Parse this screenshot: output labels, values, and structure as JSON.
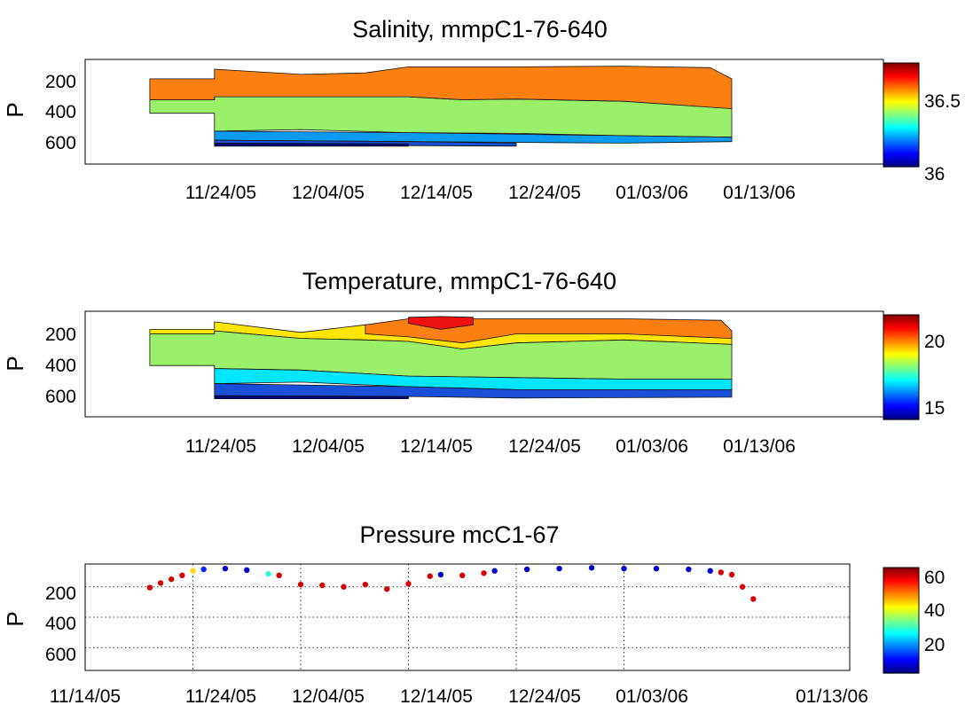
{
  "figure": {
    "panels": [
      {
        "key": "salinity",
        "title": "Salinity, mmpC1-76-640",
        "ylabel": "P",
        "yticks": [
          200,
          400,
          600
        ],
        "xticks": [
          "11/24/05",
          "12/04/05",
          "12/14/05",
          "12/24/05",
          "01/03/06",
          "01/13/06"
        ],
        "colorbar_ticks": [
          "36.5",
          "36"
        ]
      },
      {
        "key": "temperature",
        "title": "Temperature, mmpC1-76-640",
        "ylabel": "P",
        "yticks": [
          200,
          400,
          600
        ],
        "xticks": [
          "11/24/05",
          "12/04/05",
          "12/14/05",
          "12/24/05",
          "01/03/06",
          "01/13/06"
        ],
        "colorbar_ticks": [
          "20",
          "15"
        ]
      },
      {
        "key": "pressure",
        "title": "Pressure mcC1-67",
        "ylabel": "P",
        "yticks": [
          200,
          400,
          600
        ],
        "xticks": [
          "11/14/05",
          "11/24/05",
          "12/04/05",
          "12/14/05",
          "12/24/05",
          "01/03/06",
          "01/13/06"
        ],
        "colorbar_ticks": [
          "60",
          "40",
          "20"
        ]
      }
    ]
  },
  "chart_data": [
    {
      "type": "heatmap",
      "title": "Salinity, mmpC1-76-640",
      "xlabel": "",
      "ylabel": "P",
      "x_range": [
        "11/14/05",
        "01/23/06"
      ],
      "ylim": [
        750,
        50
      ],
      "y_reversed": true,
      "colorbar": {
        "min": 35.95,
        "max": 36.75,
        "ticks": [
          36,
          36.5
        ],
        "colormap": "jet"
      },
      "bands": [
        {
          "range": [
            36.0,
            36.1
          ],
          "color": "#00007f"
        },
        {
          "range": [
            36.1,
            36.2
          ],
          "color": "#1a4fd8"
        },
        {
          "range": [
            36.2,
            36.3
          ],
          "color": "#0a9bf0"
        },
        {
          "range": [
            36.4,
            36.5
          ],
          "color": "#9af06a"
        },
        {
          "range": [
            36.5,
            36.7
          ],
          "color": "#fc7f12"
        }
      ],
      "layers": [
        {
          "band": 3,
          "top": [
            [
              "11/20/05",
              320
            ],
            [
              "11/26/05",
              320
            ],
            [
              "11/26/05",
              300
            ],
            [
              "12/04/05",
              300
            ],
            [
              "12/14/05",
              300
            ],
            [
              "12/19/05",
              320
            ],
            [
              "12/24/05",
              315
            ],
            [
              "01/03/06",
              330
            ],
            [
              "01/08/06",
              340
            ],
            [
              "01/12/06",
              350
            ],
            [
              "01/13/06",
              380
            ]
          ],
          "bottom": [
            [
              "11/20/05",
              410
            ],
            [
              "11/26/05",
              410
            ],
            [
              "11/26/05",
              530
            ],
            [
              "12/04/05",
              520
            ],
            [
              "12/14/05",
              540
            ],
            [
              "12/24/05",
              545
            ],
            [
              "01/03/06",
              560
            ],
            [
              "01/13/06",
              570
            ]
          ]
        },
        {
          "band": 4,
          "top": [
            [
              "11/20/05",
              180
            ],
            [
              "11/26/05",
              180
            ],
            [
              "11/26/05",
              115
            ],
            [
              "12/04/05",
              150
            ],
            [
              "12/10/05",
              140
            ],
            [
              "12/14/05",
              100
            ],
            [
              "12/24/05",
              100
            ],
            [
              "01/03/06",
              95
            ],
            [
              "01/11/06",
              105
            ],
            [
              "01/13/06",
              180
            ]
          ],
          "bottom": [
            [
              "11/20/05",
              320
            ],
            [
              "11/26/05",
              320
            ],
            [
              "11/26/05",
              300
            ],
            [
              "12/04/05",
              300
            ],
            [
              "12/14/05",
              300
            ],
            [
              "12/19/05",
              320
            ],
            [
              "12/24/05",
              315
            ],
            [
              "01/03/06",
              330
            ],
            [
              "01/13/06",
              380
            ]
          ]
        },
        {
          "band": 2,
          "top": [
            [
              "11/26/05",
              530
            ],
            [
              "12/14/05",
              540
            ],
            [
              "01/03/06",
              560
            ],
            [
              "01/13/06",
              570
            ]
          ],
          "bottom": [
            [
              "11/26/05",
              590
            ],
            [
              "12/14/05",
              600
            ],
            [
              "01/03/06",
              610
            ],
            [
              "01/13/06",
              600
            ]
          ]
        },
        {
          "band": 1,
          "top": [
            [
              "11/26/05",
              590
            ],
            [
              "12/14/05",
              600
            ],
            [
              "12/24/05",
              610
            ]
          ],
          "bottom": [
            [
              "11/26/05",
              620
            ],
            [
              "12/24/05",
              630
            ]
          ]
        },
        {
          "band": 0,
          "top": [
            [
              "11/26/05",
              610
            ],
            [
              "12/14/05",
              615
            ]
          ],
          "bottom": [
            [
              "11/26/05",
              630
            ],
            [
              "12/14/05",
              630
            ]
          ]
        }
      ]
    },
    {
      "type": "heatmap",
      "title": "Temperature, mmpC1-76-640",
      "xlabel": "",
      "ylabel": "P",
      "x_range": [
        "11/14/05",
        "01/23/06"
      ],
      "ylim": [
        750,
        50
      ],
      "y_reversed": true,
      "colorbar": {
        "min": 14,
        "max": 22,
        "ticks": [
          15,
          20
        ],
        "colormap": "jet"
      },
      "bands": [
        {
          "range": [
            14,
            15
          ],
          "color": "#00007f"
        },
        {
          "range": [
            15,
            16
          ],
          "color": "#1a4fd8"
        },
        {
          "range": [
            16,
            17
          ],
          "color": "#00e5ff"
        },
        {
          "range": [
            17,
            19
          ],
          "color": "#9af06a"
        },
        {
          "range": [
            19,
            20
          ],
          "color": "#ffe600"
        },
        {
          "range": [
            20,
            21
          ],
          "color": "#fc7f12"
        },
        {
          "range": [
            21,
            22
          ],
          "color": "#ee1111"
        }
      ],
      "layers": [
        {
          "band": 4,
          "top": [
            [
              "11/20/05",
              170
            ],
            [
              "11/26/05",
              170
            ],
            [
              "11/26/05",
              120
            ],
            [
              "12/04/05",
              190
            ],
            [
              "12/10/05",
              140
            ],
            [
              "12/14/05",
              150
            ],
            [
              "12/24/05",
              150
            ],
            [
              "01/03/06",
              130
            ],
            [
              "01/13/06",
              200
            ]
          ],
          "bottom": [
            [
              "11/20/05",
              200
            ],
            [
              "11/26/05",
              200
            ],
            [
              "11/26/05",
              180
            ],
            [
              "12/04/05",
              230
            ],
            [
              "12/10/05",
              240
            ],
            [
              "12/14/05",
              250
            ],
            [
              "12/19/05",
              300
            ],
            [
              "12/24/05",
              260
            ],
            [
              "01/03/06",
              240
            ],
            [
              "01/13/06",
              270
            ]
          ]
        },
        {
          "band": 5,
          "top": [
            [
              "12/10/05",
              140
            ],
            [
              "12/14/05",
              100
            ],
            [
              "12/24/05",
              100
            ],
            [
              "01/03/06",
              100
            ],
            [
              "01/12/06",
              110
            ],
            [
              "01/13/06",
              180
            ]
          ],
          "bottom": [
            [
              "12/10/05",
              200
            ],
            [
              "12/14/05",
              220
            ],
            [
              "12/19/05",
              260
            ],
            [
              "12/24/05",
              200
            ],
            [
              "01/03/06",
              200
            ],
            [
              "01/13/06",
              230
            ]
          ]
        },
        {
          "band": 6,
          "top": [
            [
              "12/14/05",
              90
            ],
            [
              "12/17/05",
              85
            ],
            [
              "12/20/05",
              90
            ]
          ],
          "bottom": [
            [
              "12/14/05",
              130
            ],
            [
              "12/17/05",
              170
            ],
            [
              "12/20/05",
              140
            ]
          ]
        },
        {
          "band": 3,
          "top": [
            [
              "11/20/05",
              200
            ],
            [
              "11/26/05",
              200
            ],
            [
              "11/26/05",
              180
            ],
            [
              "12/04/05",
              230
            ],
            [
              "12/10/05",
              240
            ],
            [
              "12/14/05",
              250
            ],
            [
              "12/19/05",
              300
            ],
            [
              "12/24/05",
              260
            ],
            [
              "01/03/06",
              240
            ],
            [
              "01/13/06",
              270
            ]
          ],
          "bottom": [
            [
              "11/20/05",
              410
            ],
            [
              "11/26/05",
              410
            ],
            [
              "11/26/05",
              430
            ],
            [
              "12/04/05",
              440
            ],
            [
              "12/14/05",
              480
            ],
            [
              "12/24/05",
              490
            ],
            [
              "01/03/06",
              500
            ],
            [
              "01/13/06",
              500
            ]
          ]
        },
        {
          "band": 2,
          "top": [
            [
              "11/26/05",
              430
            ],
            [
              "12/04/05",
              440
            ],
            [
              "12/14/05",
              480
            ],
            [
              "12/24/05",
              490
            ],
            [
              "01/03/06",
              500
            ],
            [
              "01/13/06",
              500
            ]
          ],
          "bottom": [
            [
              "11/26/05",
              530
            ],
            [
              "12/04/05",
              520
            ],
            [
              "12/14/05",
              550
            ],
            [
              "12/24/05",
              570
            ],
            [
              "01/03/06",
              580
            ],
            [
              "01/13/06",
              570
            ]
          ]
        },
        {
          "band": 1,
          "top": [
            [
              "11/26/05",
              530
            ],
            [
              "12/14/05",
              550
            ],
            [
              "12/24/05",
              570
            ],
            [
              "01/13/06",
              570
            ]
          ],
          "bottom": [
            [
              "11/26/05",
              610
            ],
            [
              "12/14/05",
              615
            ],
            [
              "12/24/05",
              625
            ],
            [
              "01/13/06",
              620
            ]
          ]
        },
        {
          "band": 0,
          "top": [
            [
              "11/26/05",
              610
            ],
            [
              "12/14/05",
              615
            ]
          ],
          "bottom": [
            [
              "11/26/05",
              630
            ],
            [
              "12/14/05",
              630
            ]
          ]
        }
      ]
    },
    {
      "type": "scatter",
      "title": "Pressure mcC1-67",
      "xlabel": "",
      "ylabel": "P",
      "x_range": [
        "11/14/05",
        "01/13/06"
      ],
      "ylim": [
        750,
        50
      ],
      "y_reversed": true,
      "grid": true,
      "colorbar": {
        "min": 5,
        "max": 65,
        "ticks": [
          20,
          40,
          60
        ],
        "colormap": "jet"
      },
      "color_by": "value",
      "points": [
        {
          "date": "11/20/05",
          "P": 205,
          "c": 60
        },
        {
          "date": "11/21/05",
          "P": 175,
          "c": 60
        },
        {
          "date": "11/22/05",
          "P": 150,
          "c": 60
        },
        {
          "date": "11/23/05",
          "P": 125,
          "c": 60
        },
        {
          "date": "11/24/05",
          "P": 95,
          "c": 45
        },
        {
          "date": "11/25/05",
          "P": 85,
          "c": 15
        },
        {
          "date": "11/27/05",
          "P": 80,
          "c": 10
        },
        {
          "date": "11/29/05",
          "P": 90,
          "c": 10
        },
        {
          "date": "12/01/05",
          "P": 115,
          "c": 30
        },
        {
          "date": "12/02/05",
          "P": 125,
          "c": 60
        },
        {
          "date": "12/04/05",
          "P": 185,
          "c": 60
        },
        {
          "date": "12/06/05",
          "P": 190,
          "c": 60
        },
        {
          "date": "12/08/05",
          "P": 200,
          "c": 60
        },
        {
          "date": "12/10/05",
          "P": 185,
          "c": 60
        },
        {
          "date": "12/12/05",
          "P": 215,
          "c": 60
        },
        {
          "date": "12/14/05",
          "P": 180,
          "c": 60
        },
        {
          "date": "12/16/05",
          "P": 130,
          "c": 60
        },
        {
          "date": "12/17/05",
          "P": 120,
          "c": 10
        },
        {
          "date": "12/19/05",
          "P": 125,
          "c": 60
        },
        {
          "date": "12/21/05",
          "P": 110,
          "c": 60
        },
        {
          "date": "12/22/05",
          "P": 95,
          "c": 10
        },
        {
          "date": "12/25/05",
          "P": 85,
          "c": 10
        },
        {
          "date": "12/28/05",
          "P": 80,
          "c": 10
        },
        {
          "date": "12/31/05",
          "P": 75,
          "c": 10
        },
        {
          "date": "01/03/06",
          "P": 80,
          "c": 10
        },
        {
          "date": "01/06/06",
          "P": 80,
          "c": 10
        },
        {
          "date": "01/09/06",
          "P": 85,
          "c": 10
        },
        {
          "date": "01/11/06",
          "P": 95,
          "c": 10
        },
        {
          "date": "01/12/06",
          "P": 105,
          "c": 60
        },
        {
          "date": "01/13/06",
          "P": 120,
          "c": 60
        },
        {
          "date": "01/14/06",
          "P": 200,
          "c": 60
        },
        {
          "date": "01/15/06",
          "P": 280,
          "c": 60
        }
      ]
    }
  ]
}
